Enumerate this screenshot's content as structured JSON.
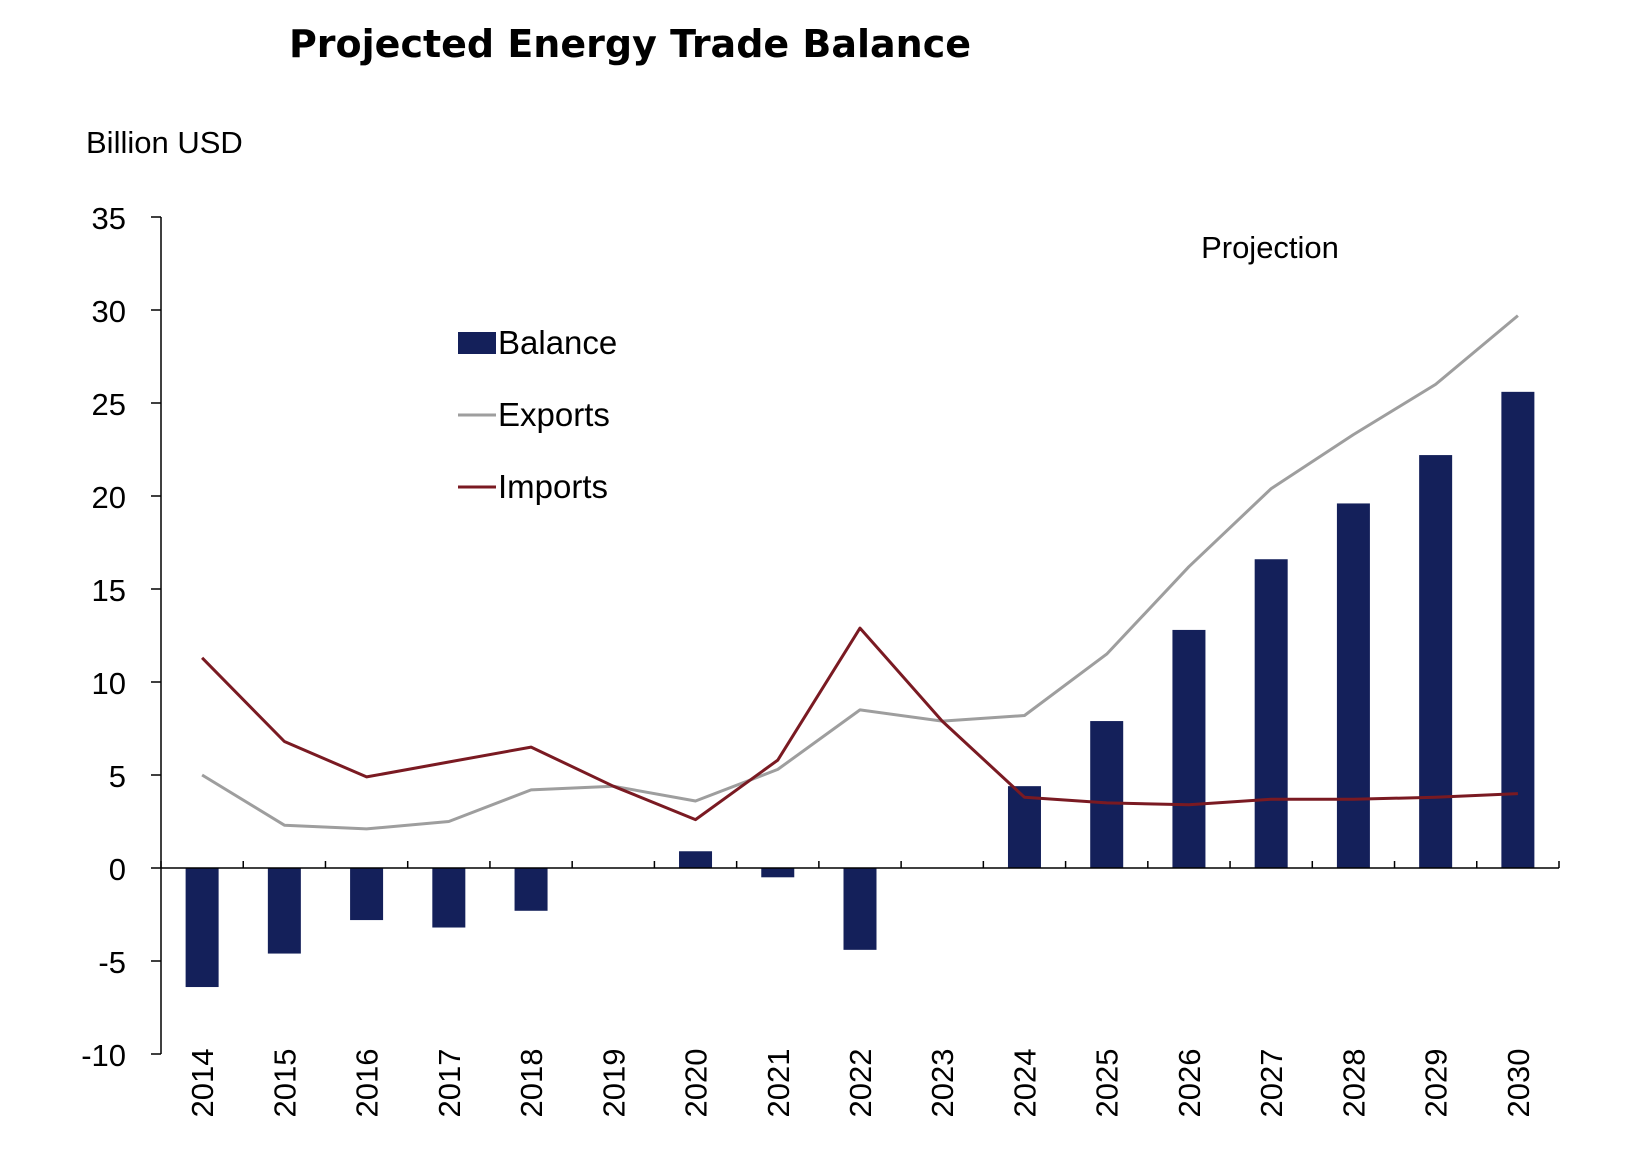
{
  "chart_data": {
    "type": "bar",
    "title": "Projected Energy Trade Balance",
    "ylabel": "Billion USD",
    "annotation": "Projection",
    "ylim": [
      -10,
      35
    ],
    "yticks": [
      -10,
      -5,
      0,
      5,
      10,
      15,
      20,
      25,
      30,
      35
    ],
    "grid": false,
    "legend_position": "top-left",
    "categories": [
      "2014",
      "2015",
      "2016",
      "2017",
      "2018",
      "2019",
      "2020",
      "2021",
      "2022",
      "2023",
      "2024",
      "2025",
      "2026",
      "2027",
      "2028",
      "2029",
      "2030"
    ],
    "series": [
      {
        "name": "Balance",
        "type": "bar",
        "color": "#14205a",
        "values": [
          -6.4,
          -4.6,
          -2.8,
          -3.2,
          -2.3,
          0,
          0.9,
          -0.5,
          -4.4,
          0,
          4.4,
          7.9,
          12.8,
          16.6,
          19.6,
          22.2,
          25.6
        ]
      },
      {
        "name": "Exports",
        "type": "line",
        "color": "#9e9e9e",
        "values": [
          5.0,
          2.3,
          2.1,
          2.5,
          4.2,
          4.4,
          3.6,
          5.3,
          8.5,
          7.9,
          8.2,
          11.5,
          16.2,
          20.4,
          23.3,
          26.0,
          29.7
        ]
      },
      {
        "name": "Imports",
        "type": "line",
        "color": "#7a1a22",
        "values": [
          11.3,
          6.8,
          4.9,
          5.7,
          6.5,
          4.4,
          2.6,
          5.8,
          12.9,
          7.9,
          3.8,
          3.5,
          3.4,
          3.7,
          3.7,
          3.8,
          4.0
        ]
      }
    ]
  }
}
